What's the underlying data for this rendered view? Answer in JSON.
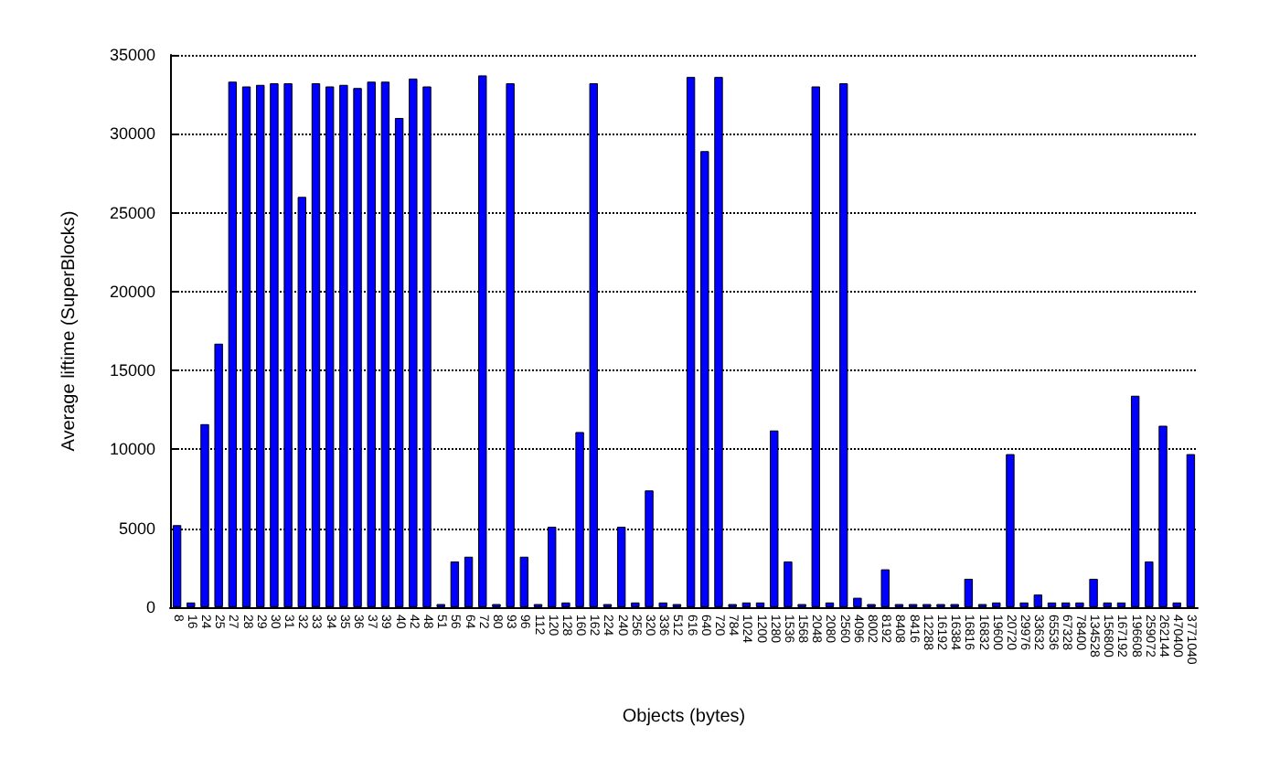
{
  "chart_data": {
    "type": "bar",
    "xlabel": "Objects (bytes)",
    "ylabel": "Average liftime (SuperBlocks)",
    "categories": [
      "8",
      "16",
      "24",
      "25",
      "27",
      "28",
      "29",
      "30",
      "31",
      "32",
      "33",
      "34",
      "35",
      "36",
      "37",
      "39",
      "40",
      "42",
      "48",
      "51",
      "56",
      "64",
      "72",
      "80",
      "93",
      "96",
      "112",
      "120",
      "128",
      "160",
      "162",
      "224",
      "240",
      "256",
      "320",
      "336",
      "512",
      "616",
      "640",
      "720",
      "784",
      "1024",
      "1200",
      "1280",
      "1536",
      "1568",
      "2048",
      "2080",
      "2560",
      "4096",
      "8002",
      "8192",
      "8408",
      "8416",
      "12288",
      "16192",
      "16384",
      "16816",
      "16832",
      "19600",
      "20720",
      "29976",
      "33632",
      "65536",
      "67328",
      "78400",
      "134528",
      "156800",
      "167192",
      "196608",
      "259072",
      "262144",
      "470400",
      "3771040"
    ],
    "series": [
      {
        "color": "#0000ff",
        "values": [
          5200,
          300,
          11600,
          16700,
          33300,
          33000,
          33100,
          33200,
          33200,
          26000,
          33200,
          33000,
          33100,
          32900,
          33300,
          33300,
          31000,
          33500,
          33000,
          200,
          2900,
          3200,
          33700,
          200,
          33200,
          3200,
          200,
          5100,
          300,
          11100,
          33200,
          200,
          5100,
          300,
          7400,
          300,
          200,
          33600,
          28900,
          33600,
          200,
          300,
          300,
          11200,
          2900,
          200,
          33000,
          300,
          33200,
          600,
          200,
          2400,
          200,
          200,
          200,
          200,
          200,
          1800,
          200,
          300,
          9700,
          300,
          800,
          300,
          300,
          300,
          1800,
          300,
          300,
          13400,
          2900,
          11500,
          300,
          9700
        ]
      }
    ],
    "ylim": [
      0,
      35000
    ],
    "yticks": [
      0,
      5000,
      10000,
      15000,
      20000,
      25000,
      30000,
      35000
    ],
    "grid": "y"
  }
}
